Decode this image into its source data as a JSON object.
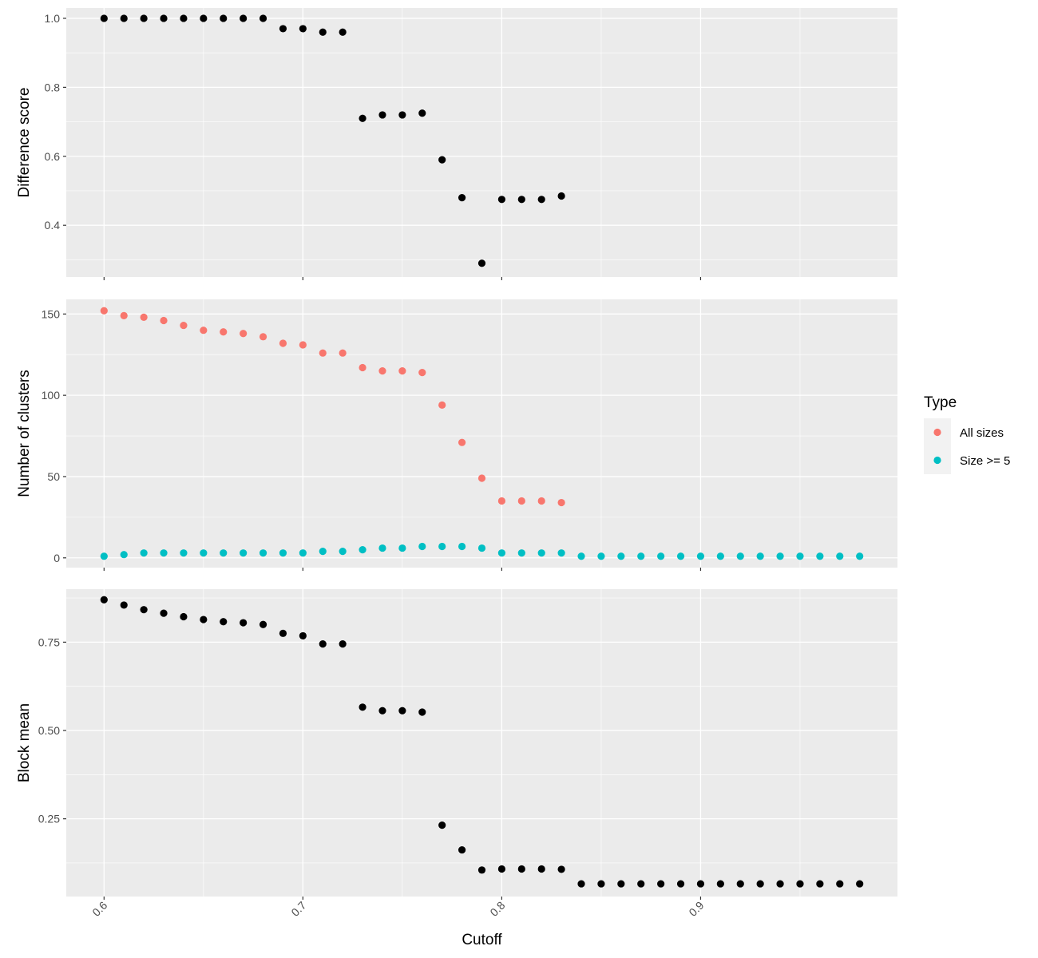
{
  "chart_data": [
    {
      "type": "scatter",
      "ylabel": "Difference score",
      "ylim": [
        0.25,
        1.03
      ],
      "yticks": [
        0.4,
        0.6,
        0.8,
        1.0
      ],
      "ytick_labels": [
        "0.4",
        "0.6",
        "0.8",
        "1.0"
      ],
      "series": [
        {
          "color": "#000000",
          "x": [
            0.6,
            0.61,
            0.62,
            0.63,
            0.64,
            0.65,
            0.66,
            0.67,
            0.68,
            0.69,
            0.7,
            0.71,
            0.72,
            0.73,
            0.74,
            0.75,
            0.76,
            0.77,
            0.78,
            0.79,
            0.8,
            0.81,
            0.82,
            0.83
          ],
          "y": [
            1.0,
            1.0,
            1.0,
            1.0,
            1.0,
            1.0,
            1.0,
            1.0,
            1.0,
            0.97,
            0.97,
            0.96,
            0.96,
            0.71,
            0.72,
            0.72,
            0.725,
            0.59,
            0.48,
            0.29,
            0.475,
            0.475,
            0.475,
            0.485
          ]
        }
      ]
    },
    {
      "type": "scatter",
      "ylabel": "Number of clusters",
      "ylim": [
        -6,
        159
      ],
      "yticks": [
        0,
        50,
        100,
        150
      ],
      "ytick_labels": [
        "0",
        "50",
        "100",
        "150"
      ],
      "series": [
        {
          "name": "All sizes",
          "color": "#F8766D",
          "x": [
            0.6,
            0.61,
            0.62,
            0.63,
            0.64,
            0.65,
            0.66,
            0.67,
            0.68,
            0.69,
            0.7,
            0.71,
            0.72,
            0.73,
            0.74,
            0.75,
            0.76,
            0.77,
            0.78,
            0.79,
            0.8,
            0.81,
            0.82,
            0.83
          ],
          "y": [
            152,
            149,
            148,
            146,
            143,
            140,
            139,
            138,
            136,
            132,
            131,
            126,
            126,
            117,
            115,
            115,
            114,
            94,
            71,
            49,
            35,
            35,
            35,
            34
          ]
        },
        {
          "name": "Size >= 5",
          "color": "#00BFC4",
          "x": [
            0.6,
            0.61,
            0.62,
            0.63,
            0.64,
            0.65,
            0.66,
            0.67,
            0.68,
            0.69,
            0.7,
            0.71,
            0.72,
            0.73,
            0.74,
            0.75,
            0.76,
            0.77,
            0.78,
            0.79,
            0.8,
            0.81,
            0.82,
            0.83,
            0.84,
            0.85,
            0.86,
            0.87,
            0.88,
            0.89,
            0.9,
            0.91,
            0.92,
            0.93,
            0.94,
            0.95,
            0.96,
            0.97,
            0.98
          ],
          "y": [
            1,
            2,
            3,
            3,
            3,
            3,
            3,
            3,
            3,
            3,
            3,
            4,
            4,
            5,
            6,
            6,
            7,
            7,
            7,
            6,
            3,
            3,
            3,
            3,
            1,
            1,
            1,
            1,
            1,
            1,
            1,
            1,
            1,
            1,
            1,
            1,
            1,
            1,
            1
          ]
        }
      ]
    },
    {
      "type": "scatter",
      "ylabel": "Block mean",
      "xlabel": "Cutoff",
      "ylim": [
        0.03,
        0.9
      ],
      "yticks": [
        0.25,
        0.5,
        0.75
      ],
      "ytick_labels": [
        "0.25",
        "0.50",
        "0.75"
      ],
      "series": [
        {
          "color": "#000000",
          "x": [
            0.6,
            0.61,
            0.62,
            0.63,
            0.64,
            0.65,
            0.66,
            0.67,
            0.68,
            0.69,
            0.7,
            0.71,
            0.72,
            0.73,
            0.74,
            0.75,
            0.76,
            0.77,
            0.78,
            0.79,
            0.8,
            0.81,
            0.82,
            0.83,
            0.84,
            0.85,
            0.86,
            0.87,
            0.88,
            0.89,
            0.9,
            0.91,
            0.92,
            0.93,
            0.94,
            0.95,
            0.96,
            0.97,
            0.98
          ],
          "y": [
            0.87,
            0.855,
            0.842,
            0.832,
            0.822,
            0.814,
            0.808,
            0.805,
            0.8,
            0.775,
            0.768,
            0.745,
            0.745,
            0.566,
            0.556,
            0.556,
            0.552,
            0.232,
            0.162,
            0.105,
            0.108,
            0.108,
            0.108,
            0.107,
            0.066,
            0.066,
            0.066,
            0.066,
            0.066,
            0.066,
            0.066,
            0.066,
            0.066,
            0.066,
            0.066,
            0.066,
            0.066,
            0.066,
            0.066
          ]
        }
      ]
    }
  ],
  "x_axis": {
    "xlim": [
      0.581,
      0.999
    ],
    "ticks": [
      0.6,
      0.7,
      0.8,
      0.9
    ],
    "tick_labels": [
      "0.6",
      "0.7",
      "0.8",
      "0.9"
    ]
  },
  "legend": {
    "title": "Type",
    "placement": "right",
    "items": [
      {
        "label": "All sizes",
        "color": "#F8766D"
      },
      {
        "label": "Size >= 5",
        "color": "#00BFC4"
      }
    ]
  },
  "style": {
    "panel_bg": "#EBEBEB",
    "grid_major": "#FFFFFF",
    "tick_color": "#333333",
    "legend_key_bg": "#F2F2F2"
  }
}
